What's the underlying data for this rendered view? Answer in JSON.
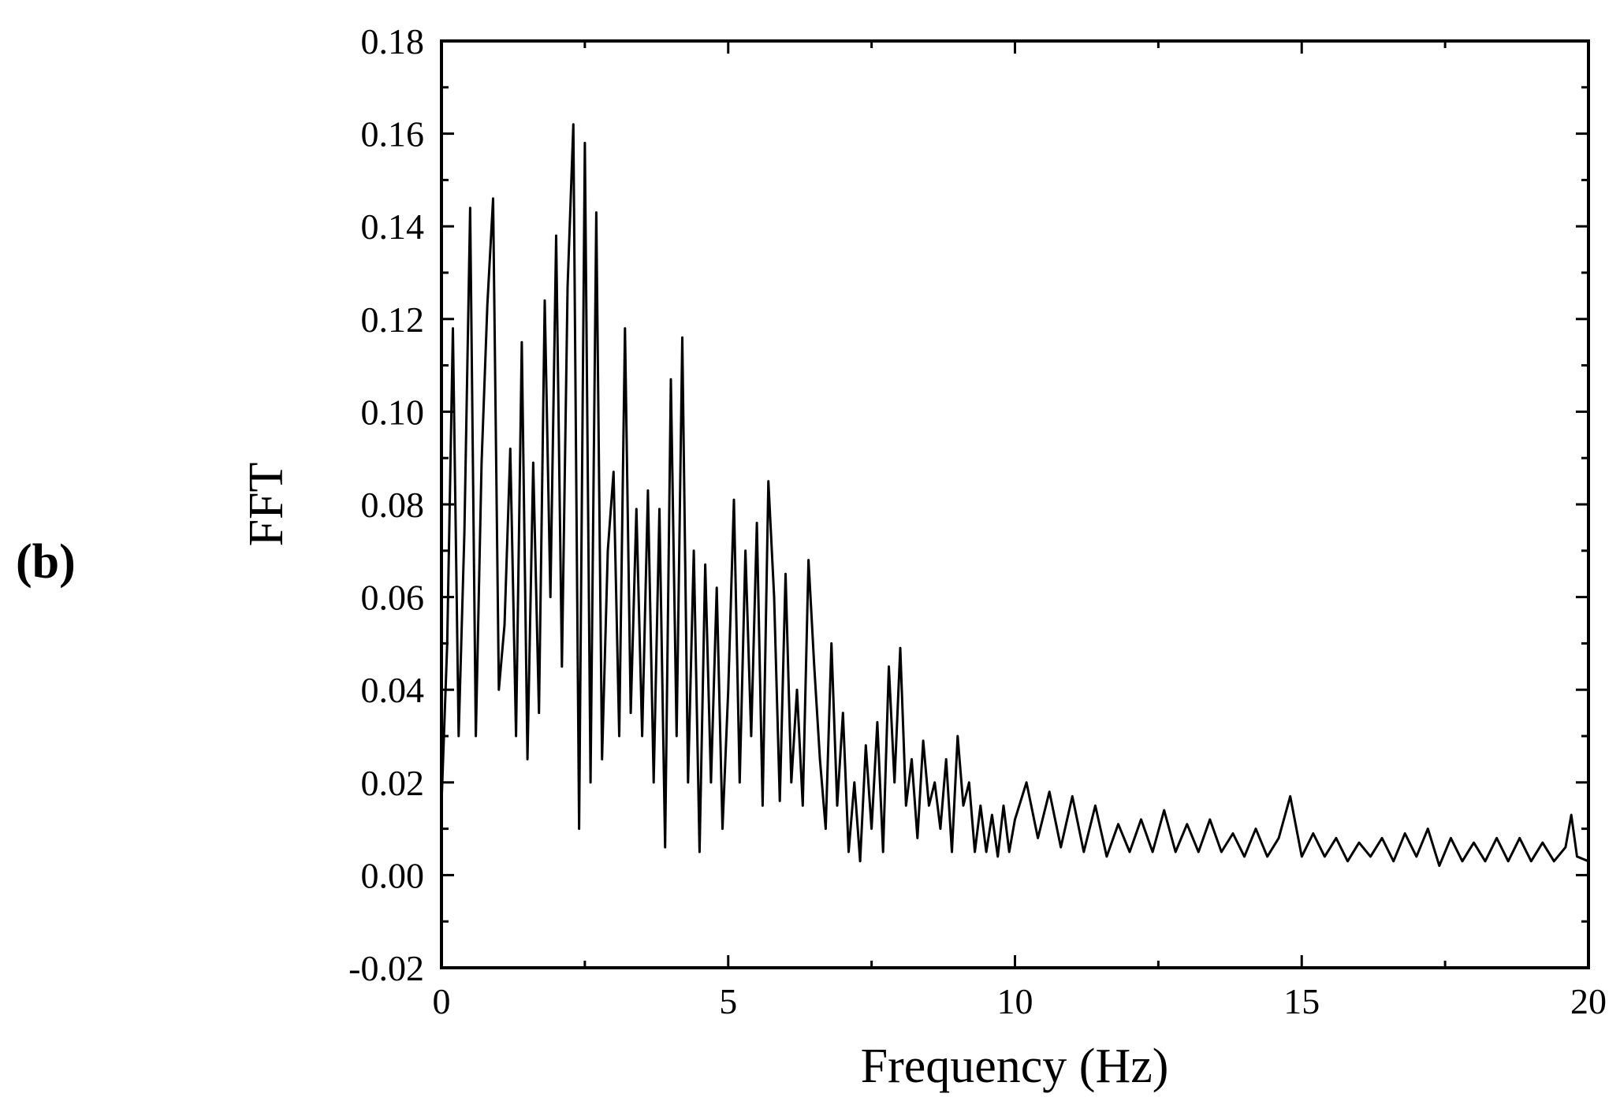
{
  "panel_label": "(b)",
  "chart_data": {
    "type": "line",
    "title": "",
    "xlabel": "Frequency (Hz)",
    "ylabel": "FFT",
    "xlim": [
      0,
      20
    ],
    "ylim": [
      -0.02,
      0.18
    ],
    "x_ticks": [
      "0",
      "5",
      "10",
      "15",
      "20"
    ],
    "y_ticks": [
      "-0.02",
      "0.00",
      "0.02",
      "0.04",
      "0.06",
      "0.08",
      "0.10",
      "0.12",
      "0.14",
      "0.16",
      "0.18"
    ],
    "grid": false,
    "legend": "none",
    "line_color": "#000000",
    "series": [
      {
        "x": [
          0.0,
          0.1,
          0.2,
          0.3,
          0.4,
          0.5,
          0.6,
          0.7,
          0.8,
          0.9,
          1.0,
          1.1,
          1.2,
          1.3,
          1.4,
          1.5,
          1.6,
          1.7,
          1.8,
          1.9,
          2.0,
          2.1,
          2.2,
          2.3,
          2.4,
          2.5,
          2.6,
          2.7,
          2.8,
          2.9,
          3.0,
          3.1,
          3.2,
          3.3,
          3.4,
          3.5,
          3.6,
          3.7,
          3.8,
          3.9,
          4.0,
          4.1,
          4.2,
          4.3,
          4.4,
          4.5,
          4.6,
          4.7,
          4.8,
          4.9,
          5.0,
          5.1,
          5.2,
          5.3,
          5.4,
          5.5,
          5.6,
          5.7,
          5.8,
          5.9,
          6.0,
          6.1,
          6.2,
          6.3,
          6.4,
          6.5,
          6.6,
          6.7,
          6.8,
          6.9,
          7.0,
          7.1,
          7.2,
          7.3,
          7.4,
          7.5,
          7.6,
          7.7,
          7.8,
          7.9,
          8.0,
          8.1,
          8.2,
          8.3,
          8.4,
          8.5,
          8.6,
          8.7,
          8.8,
          8.9,
          9.0,
          9.1,
          9.2,
          9.3,
          9.4,
          9.5,
          9.6,
          9.7,
          9.8,
          9.9,
          10.0,
          10.2,
          10.4,
          10.6,
          10.8,
          11.0,
          11.2,
          11.4,
          11.6,
          11.8,
          12.0,
          12.2,
          12.4,
          12.6,
          12.8,
          13.0,
          13.2,
          13.4,
          13.6,
          13.8,
          14.0,
          14.2,
          14.4,
          14.6,
          14.8,
          15.0,
          15.2,
          15.4,
          15.6,
          15.8,
          16.0,
          16.2,
          16.4,
          16.6,
          16.8,
          17.0,
          17.2,
          17.4,
          17.6,
          17.8,
          18.0,
          18.2,
          18.4,
          18.6,
          18.8,
          19.0,
          19.2,
          19.4,
          19.6,
          19.7,
          19.8,
          20.0
        ],
        "y": [
          0.015,
          0.05,
          0.118,
          0.03,
          0.074,
          0.144,
          0.03,
          0.089,
          0.123,
          0.146,
          0.04,
          0.054,
          0.092,
          0.03,
          0.115,
          0.025,
          0.089,
          0.035,
          0.124,
          0.06,
          0.138,
          0.045,
          0.127,
          0.162,
          0.01,
          0.158,
          0.02,
          0.143,
          0.025,
          0.07,
          0.087,
          0.03,
          0.118,
          0.035,
          0.079,
          0.03,
          0.083,
          0.02,
          0.079,
          0.006,
          0.107,
          0.03,
          0.116,
          0.02,
          0.07,
          0.005,
          0.067,
          0.02,
          0.062,
          0.01,
          0.04,
          0.081,
          0.02,
          0.07,
          0.03,
          0.076,
          0.015,
          0.085,
          0.06,
          0.016,
          0.065,
          0.02,
          0.04,
          0.015,
          0.068,
          0.045,
          0.025,
          0.01,
          0.05,
          0.015,
          0.035,
          0.005,
          0.02,
          0.003,
          0.028,
          0.01,
          0.033,
          0.005,
          0.045,
          0.02,
          0.049,
          0.015,
          0.025,
          0.008,
          0.029,
          0.015,
          0.02,
          0.01,
          0.025,
          0.005,
          0.03,
          0.015,
          0.02,
          0.005,
          0.015,
          0.005,
          0.013,
          0.004,
          0.015,
          0.005,
          0.012,
          0.02,
          0.008,
          0.018,
          0.006,
          0.017,
          0.005,
          0.015,
          0.004,
          0.011,
          0.005,
          0.012,
          0.005,
          0.014,
          0.005,
          0.011,
          0.005,
          0.012,
          0.005,
          0.009,
          0.004,
          0.01,
          0.004,
          0.008,
          0.017,
          0.004,
          0.009,
          0.004,
          0.008,
          0.003,
          0.007,
          0.004,
          0.008,
          0.003,
          0.009,
          0.004,
          0.01,
          0.002,
          0.008,
          0.003,
          0.007,
          0.003,
          0.008,
          0.003,
          0.008,
          0.003,
          0.007,
          0.003,
          0.006,
          0.013,
          0.004,
          0.003
        ]
      }
    ]
  }
}
